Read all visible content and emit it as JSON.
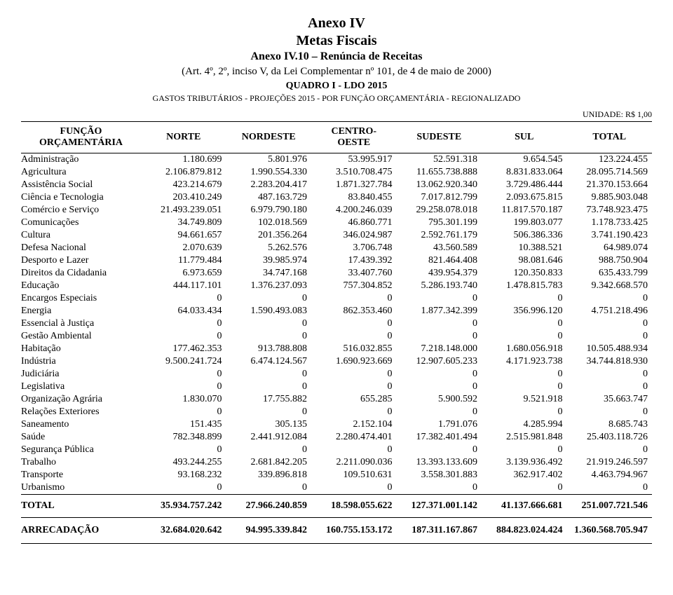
{
  "header": {
    "anexo": "Anexo IV",
    "metas": "Metas Fiscais",
    "anexo_sub": "Anexo IV.10 – Renúncia de Receitas",
    "art": "(Art. 4º, 2º, inciso V, da Lei Complementar nº 101, de 4 de maio de 2000)",
    "quadro": "QUADRO I - LDO 2015",
    "desc": "GASTOS TRIBUTÁRIOS - PROJEÇÕES 2015 - POR FUNÇÃO ORÇAMENTÁRIA - REGIONALIZADO",
    "unit": "UNIDADE: R$ 1,00"
  },
  "columns": {
    "funcao_line1": "FUNÇÃO",
    "funcao_line2": "ORÇAMENTÁRIA",
    "norte": "NORTE",
    "nordeste": "NORDESTE",
    "centro_line1": "CENTRO-",
    "centro_line2": "OESTE",
    "sudeste": "SUDESTE",
    "sul": "SUL",
    "total": "TOTAL"
  },
  "rows": [
    {
      "label": "Administração",
      "v": [
        "1.180.699",
        "5.801.976",
        "53.995.917",
        "52.591.318",
        "9.654.545",
        "123.224.455"
      ]
    },
    {
      "label": "Agricultura",
      "v": [
        "2.106.879.812",
        "1.990.554.330",
        "3.510.708.475",
        "11.655.738.888",
        "8.831.833.064",
        "28.095.714.569"
      ]
    },
    {
      "label": "Assistência Social",
      "v": [
        "423.214.679",
        "2.283.204.417",
        "1.871.327.784",
        "13.062.920.340",
        "3.729.486.444",
        "21.370.153.664"
      ]
    },
    {
      "label": "Ciência e Tecnologia",
      "v": [
        "203.410.249",
        "487.163.729",
        "83.840.455",
        "7.017.812.799",
        "2.093.675.815",
        "9.885.903.048"
      ]
    },
    {
      "label": "Comércio e Serviço",
      "v": [
        "21.493.239.051",
        "6.979.790.180",
        "4.200.246.039",
        "29.258.078.018",
        "11.817.570.187",
        "73.748.923.475"
      ]
    },
    {
      "label": "Comunicações",
      "v": [
        "34.749.809",
        "102.018.569",
        "46.860.771",
        "795.301.199",
        "199.803.077",
        "1.178.733.425"
      ]
    },
    {
      "label": "Cultura",
      "v": [
        "94.661.657",
        "201.356.264",
        "346.024.987",
        "2.592.761.179",
        "506.386.336",
        "3.741.190.423"
      ]
    },
    {
      "label": "Defesa Nacional",
      "v": [
        "2.070.639",
        "5.262.576",
        "3.706.748",
        "43.560.589",
        "10.388.521",
        "64.989.074"
      ]
    },
    {
      "label": "Desporto e Lazer",
      "v": [
        "11.779.484",
        "39.985.974",
        "17.439.392",
        "821.464.408",
        "98.081.646",
        "988.750.904"
      ]
    },
    {
      "label": "Direitos da Cidadania",
      "v": [
        "6.973.659",
        "34.747.168",
        "33.407.760",
        "439.954.379",
        "120.350.833",
        "635.433.799"
      ]
    },
    {
      "label": "Educação",
      "v": [
        "444.117.101",
        "1.376.237.093",
        "757.304.852",
        "5.286.193.740",
        "1.478.815.783",
        "9.342.668.570"
      ]
    },
    {
      "label": "Encargos Especiais",
      "v": [
        "0",
        "0",
        "0",
        "0",
        "0",
        "0"
      ]
    },
    {
      "label": "Energia",
      "v": [
        "64.033.434",
        "1.590.493.083",
        "862.353.460",
        "1.877.342.399",
        "356.996.120",
        "4.751.218.496"
      ]
    },
    {
      "label": "Essencial à Justiça",
      "v": [
        "0",
        "0",
        "0",
        "0",
        "0",
        "0"
      ]
    },
    {
      "label": "Gestão Ambiental",
      "v": [
        "0",
        "0",
        "0",
        "0",
        "0",
        "0"
      ]
    },
    {
      "label": "Habitação",
      "v": [
        "177.462.353",
        "913.788.808",
        "516.032.855",
        "7.218.148.000",
        "1.680.056.918",
        "10.505.488.934"
      ]
    },
    {
      "label": "Indústria",
      "v": [
        "9.500.241.724",
        "6.474.124.567",
        "1.690.923.669",
        "12.907.605.233",
        "4.171.923.738",
        "34.744.818.930"
      ]
    },
    {
      "label": "Judiciária",
      "v": [
        "0",
        "0",
        "0",
        "0",
        "0",
        "0"
      ]
    },
    {
      "label": "Legislativa",
      "v": [
        "0",
        "0",
        "0",
        "0",
        "0",
        "0"
      ]
    },
    {
      "label": "Organização Agrária",
      "v": [
        "1.830.070",
        "17.755.882",
        "655.285",
        "5.900.592",
        "9.521.918",
        "35.663.747"
      ]
    },
    {
      "label": "Relações Exteriores",
      "v": [
        "0",
        "0",
        "0",
        "0",
        "0",
        "0"
      ]
    },
    {
      "label": "Saneamento",
      "v": [
        "151.435",
        "305.135",
        "2.152.104",
        "1.791.076",
        "4.285.994",
        "8.685.743"
      ]
    },
    {
      "label": "Saúde",
      "v": [
        "782.348.899",
        "2.441.912.084",
        "2.280.474.401",
        "17.382.401.494",
        "2.515.981.848",
        "25.403.118.726"
      ]
    },
    {
      "label": "Segurança Pública",
      "v": [
        "0",
        "0",
        "0",
        "0",
        "0",
        "0"
      ]
    },
    {
      "label": "Trabalho",
      "v": [
        "493.244.255",
        "2.681.842.205",
        "2.211.090.036",
        "13.393.133.609",
        "3.139.936.492",
        "21.919.246.597"
      ]
    },
    {
      "label": "Transporte",
      "v": [
        "93.168.232",
        "339.896.818",
        "109.510.631",
        "3.558.301.883",
        "362.917.402",
        "4.463.794.967"
      ]
    },
    {
      "label": "Urbanismo",
      "v": [
        "0",
        "0",
        "0",
        "0",
        "0",
        "0"
      ]
    }
  ],
  "total_row": {
    "label": "TOTAL",
    "v": [
      "35.934.757.242",
      "27.966.240.859",
      "18.598.055.622",
      "127.371.001.142",
      "41.137.666.681",
      "251.007.721.546"
    ]
  },
  "arrec_row": {
    "label": "ARRECADAÇÃO",
    "v": [
      "32.684.020.642",
      "94.995.339.842",
      "160.755.153.172",
      "187.311.167.867",
      "884.823.024.424",
      "1.360.568.705.947"
    ]
  }
}
